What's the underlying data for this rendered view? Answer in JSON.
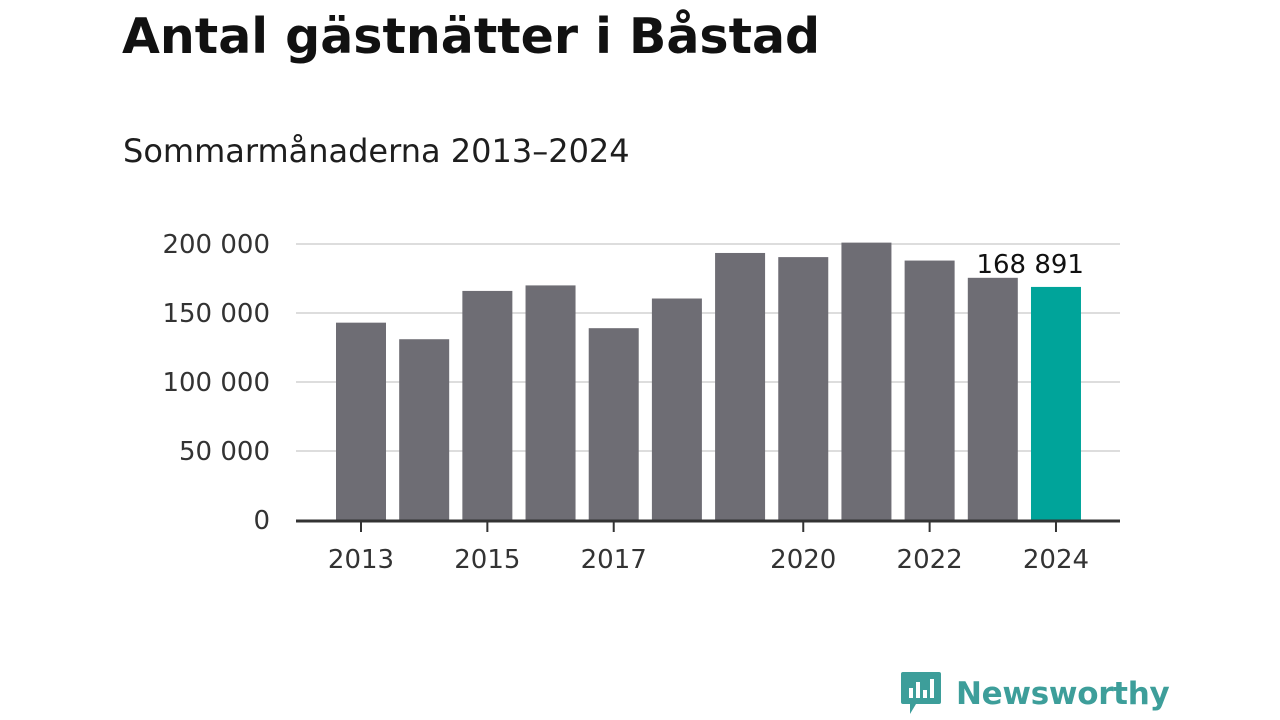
{
  "chart_data": {
    "type": "bar",
    "title": "Antal gästnätter i Båstad",
    "subtitle": "Sommarmånaderna 2013–2024",
    "categories": [
      "2013",
      "2014",
      "2015",
      "2016",
      "2017",
      "2018",
      "2019",
      "2020",
      "2021",
      "2022",
      "2023",
      "2024"
    ],
    "values": [
      143000,
      131000,
      166000,
      170000,
      139000,
      160500,
      193500,
      190500,
      201000,
      188000,
      175500,
      168891
    ],
    "x_tick_labels": [
      "2013",
      "2015",
      "2017",
      "2020",
      "2022",
      "2024"
    ],
    "y_tick_labels": [
      "0",
      "50 000",
      "100 000",
      "150 000",
      "200 000"
    ],
    "y_ticks": [
      0,
      50000,
      100000,
      150000,
      200000
    ],
    "ylim": [
      0,
      200000
    ],
    "grid": true,
    "highlight_index": 11,
    "highlight_label": "168 891",
    "colors": {
      "bar": "#6e6d74",
      "highlight": "#00a49a",
      "grid": "#dddddd",
      "axis": "#333333"
    }
  },
  "branding": {
    "name": "Newsworthy",
    "logo_icon": "newsworthy-logo-icon",
    "color": "#3d9e9a"
  }
}
